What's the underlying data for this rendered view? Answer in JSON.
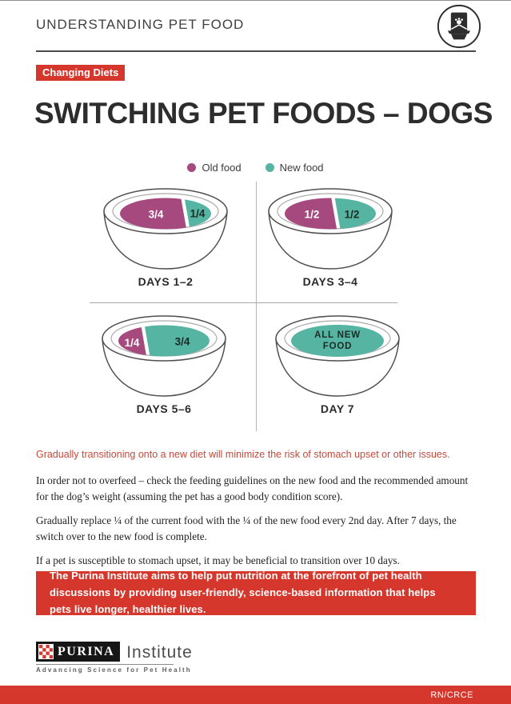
{
  "header": {
    "title": "UNDERSTANDING PET FOOD",
    "icon": "pet-food-bag-and-bowl-icon"
  },
  "badge": "Changing Diets",
  "page_title": "SWITCHING PET FOODS – DOGS",
  "legend": [
    {
      "label": "Old food",
      "color": "#a6497e"
    },
    {
      "label": "New food",
      "color": "#56b4a2"
    }
  ],
  "colors": {
    "old_food": "#a6497e",
    "new_food": "#56b4a2",
    "accent_red": "#d6372c",
    "lead_red": "#c24b3d",
    "text_on_new": "#1d2b27",
    "text_on_old": "#ffffff"
  },
  "bowls": [
    {
      "label": "DAYS 1–2",
      "portions": [
        {
          "food": "old",
          "label": "3/4"
        },
        {
          "food": "new",
          "label": "1/4"
        }
      ]
    },
    {
      "label": "DAYS 3–4",
      "portions": [
        {
          "food": "old",
          "label": "1/2"
        },
        {
          "food": "new",
          "label": "1/2"
        }
      ]
    },
    {
      "label": "DAYS 5–6",
      "portions": [
        {
          "food": "old",
          "label": "1/4"
        },
        {
          "food": "new",
          "label": "3/4"
        }
      ]
    },
    {
      "label": "DAY 7",
      "portions": [
        {
          "food": "new",
          "label": "ALL NEW FOOD",
          "lines": [
            "ALL NEW",
            "FOOD"
          ]
        }
      ]
    }
  ],
  "lead_sentence": "Gradually transitioning onto a new diet will minimize the risk of stomach upset or other issues.",
  "paragraphs": [
    "In order not to overfeed – check the feeding guidelines on the new food and the recommended amount for the dog’s weight (assuming the pet has a good body condition score).",
    "Gradually replace ¼ of the current food with the ¼ of the new food every 2nd day. After 7 days, the switch over to the new food is complete.",
    "If a pet is susceptible to stomach upset, it may be beneficial to transition over 10 days."
  ],
  "callout": "The Purina Institute aims to help put nutrition at the forefront of pet health discussions by providing user-friendly, science-based information that helps pets live longer, healthier lives.",
  "logo": {
    "brand": "PURINA",
    "suffix": "Institute",
    "tagline": "Advancing Science for Pet Health"
  },
  "footer": {
    "code": "RN/CRCE"
  }
}
